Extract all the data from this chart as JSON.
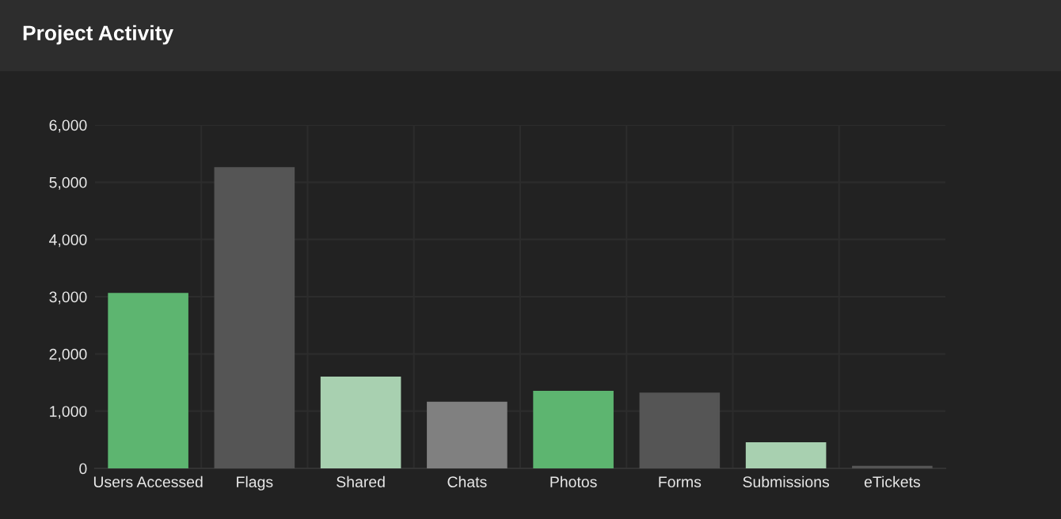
{
  "chart_data": {
    "type": "bar",
    "title": "Project Activity",
    "categories": [
      "Users Accessed",
      "Flags",
      "Shared",
      "Chats",
      "Photos",
      "Forms",
      "Submissions",
      "eTickets"
    ],
    "values": [
      3050,
      5250,
      1590,
      1150,
      1340,
      1310,
      440,
      30
    ],
    "colors": [
      "#5db570",
      "#555555",
      "#a8d0b0",
      "#808080",
      "#5db570",
      "#555555",
      "#a8d0b0",
      "#555555"
    ],
    "ylim": [
      0,
      6000
    ],
    "yticks": [
      {
        "value": 0,
        "label": "0"
      },
      {
        "value": 1000,
        "label": "1,000"
      },
      {
        "value": 2000,
        "label": "2,000"
      },
      {
        "value": 3000,
        "label": "3,000"
      },
      {
        "value": 4000,
        "label": "4,000"
      },
      {
        "value": 5000,
        "label": "5,000"
      },
      {
        "value": 6000,
        "label": "6,000"
      }
    ],
    "grid": true
  }
}
